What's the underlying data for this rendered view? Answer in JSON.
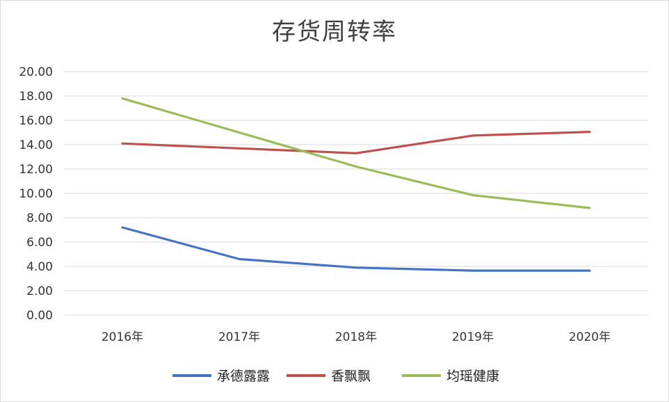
{
  "chart_data": {
    "type": "line",
    "title": "存货周转率",
    "categories": [
      "2016年",
      "2017年",
      "2018年",
      "2019年",
      "2020年"
    ],
    "ylim": [
      0,
      20
    ],
    "y_ticks": [
      "0.00",
      "2.00",
      "4.00",
      "6.00",
      "8.00",
      "10.00",
      "12.00",
      "14.00",
      "16.00",
      "18.00",
      "20.00"
    ],
    "grid": "horizontal",
    "legend_position": "bottom",
    "series": [
      {
        "name": "承德露露",
        "color": "#4472c4",
        "values": [
          7.2,
          4.6,
          3.9,
          3.65,
          3.65
        ]
      },
      {
        "name": "香飘飘",
        "color": "#c0504d",
        "values": [
          14.1,
          13.7,
          13.3,
          14.75,
          15.05
        ]
      },
      {
        "name": "均瑶健康",
        "color": "#9bbb59",
        "values": [
          17.8,
          15.0,
          12.2,
          9.85,
          8.8
        ]
      }
    ]
  }
}
